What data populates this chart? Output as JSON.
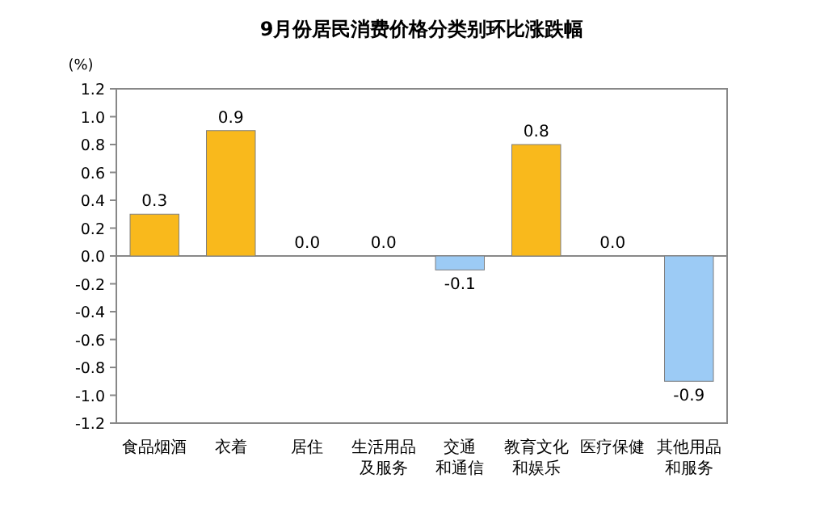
{
  "chart_data": {
    "type": "bar",
    "title": "9月份居民消费价格分类别环比涨跌幅",
    "ylabel": "(%)",
    "categories": [
      "食品烟酒",
      "衣着",
      "居住",
      "生活用品及服务",
      "交通和通信",
      "教育文化和娱乐",
      "医疗保健",
      "其他用品和服务"
    ],
    "values": [
      0.3,
      0.9,
      0.0,
      0.0,
      -0.1,
      0.8,
      0.0,
      -0.9
    ],
    "colors": [
      "#f9b91c",
      "#f9b91c",
      "#f9b91c",
      "#f9b91c",
      "#9ccbf5",
      "#f9b91c",
      "#f9b91c",
      "#9ccbf5"
    ],
    "value_labels": [
      "0.3",
      "0.9",
      "0.0",
      "0.0",
      "-0.1",
      "0.8",
      "0.0",
      "-0.9"
    ],
    "ylim": [
      -1.2,
      1.2
    ],
    "yticks": [
      {
        "value": 1.2,
        "label": "1.2"
      },
      {
        "value": 1,
        "label": "1.0"
      },
      {
        "value": 0.8,
        "label": "0.8"
      },
      {
        "value": 0.6,
        "label": "0.6"
      },
      {
        "value": 0.4,
        "label": "0.4"
      },
      {
        "value": 0.2,
        "label": "0.2"
      },
      {
        "value": 0,
        "label": "0.0"
      },
      {
        "value": -0.2,
        "label": "-0.2"
      },
      {
        "value": -0.4,
        "label": "-0.4"
      },
      {
        "value": -0.6,
        "label": "-0.6"
      },
      {
        "value": -0.8,
        "label": "-0.8"
      },
      {
        "value": -1,
        "label": "-1.0"
      },
      {
        "value": -1.2,
        "label": "-1.2"
      }
    ],
    "tick_labels": true
  }
}
